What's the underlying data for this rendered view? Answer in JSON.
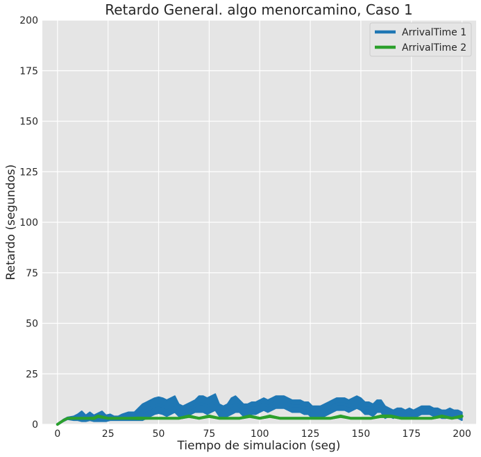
{
  "chart_data": {
    "type": "line",
    "title": "Retardo General. algo menorcamino, Caso 1",
    "xlabel": "Tiempo de simulacion (seg)",
    "ylabel": "Retardo (segundos)",
    "xlim": [
      -7.5,
      207
    ],
    "ylim": [
      0,
      200
    ],
    "xticks": [
      0,
      25,
      50,
      75,
      100,
      125,
      150,
      175,
      200
    ],
    "yticks": [
      0,
      25,
      50,
      75,
      100,
      125,
      150,
      175,
      200
    ],
    "grid": true,
    "legend_position": "top-right",
    "series": [
      {
        "name": "ArrivalTime 1",
        "color": "#1f77b4",
        "x": [
          0,
          3,
          5,
          8,
          10,
          12,
          14,
          16,
          18,
          20,
          22,
          24,
          26,
          28,
          30,
          32,
          35,
          38,
          40,
          42,
          44,
          46,
          48,
          50,
          52,
          54,
          56,
          58,
          60,
          62,
          64,
          66,
          68,
          70,
          72,
          74,
          76,
          78,
          80,
          82,
          84,
          86,
          88,
          90,
          92,
          94,
          96,
          98,
          100,
          102,
          104,
          106,
          108,
          110,
          112,
          114,
          116,
          118,
          120,
          122,
          124,
          126,
          128,
          130,
          132,
          134,
          136,
          138,
          140,
          142,
          144,
          146,
          148,
          150,
          152,
          154,
          156,
          158,
          160,
          162,
          164,
          166,
          168,
          170,
          172,
          174,
          176,
          178,
          180,
          182,
          184,
          186,
          188,
          190,
          192,
          194,
          196,
          198,
          200
        ],
        "y": [
          0,
          2,
          3,
          3,
          3.5,
          4,
          3,
          4,
          3,
          3.5,
          4,
          3,
          3.5,
          3,
          3,
          3.5,
          4,
          4,
          5,
          6,
          7,
          8,
          9,
          9.5,
          9,
          8,
          9,
          10,
          7,
          6,
          7,
          8,
          9,
          10,
          10,
          9,
          10,
          11,
          7,
          6,
          7,
          9,
          10,
          9,
          7,
          7,
          8,
          8,
          9,
          10,
          9,
          10,
          11,
          11,
          11,
          10,
          9,
          9,
          9,
          8,
          8,
          6,
          6,
          6,
          7,
          8,
          9,
          10,
          10,
          10,
          9,
          10,
          11,
          10,
          8,
          8,
          7,
          9,
          9,
          6,
          6,
          5,
          6,
          6,
          5,
          6,
          5,
          6,
          7,
          7,
          7,
          6,
          6,
          5,
          5,
          6,
          5,
          5,
          4
        ],
        "band": [
          0,
          0.5,
          0.5,
          1,
          1.5,
          2.5,
          1.5,
          2,
          1.5,
          2,
          2.5,
          1.5,
          1.5,
          1,
          1,
          1.5,
          2,
          2,
          3,
          4,
          4,
          4,
          4,
          4,
          4,
          4,
          4,
          4,
          3,
          3,
          3,
          3,
          3,
          4,
          4,
          4,
          4,
          4,
          3,
          3,
          3,
          4,
          4,
          3,
          3,
          3,
          3,
          3,
          3,
          3,
          3,
          3,
          3,
          3,
          3,
          3,
          3,
          3,
          3,
          3,
          3,
          3,
          3,
          3,
          3,
          3,
          3,
          3,
          3,
          3,
          3,
          3,
          3,
          3,
          3,
          3,
          3,
          3,
          3,
          3,
          2,
          2,
          2,
          2,
          2,
          2,
          2,
          2,
          2,
          2,
          2,
          2,
          2,
          2,
          2,
          2,
          2,
          2,
          2
        ]
      },
      {
        "name": "ArrivalTime 2",
        "color": "#2ca02c",
        "x": [
          0,
          3,
          5,
          8,
          10,
          12,
          15,
          18,
          20,
          25,
          30,
          35,
          40,
          45,
          50,
          55,
          60,
          65,
          70,
          75,
          80,
          85,
          90,
          95,
          100,
          105,
          110,
          115,
          120,
          125,
          130,
          135,
          140,
          145,
          150,
          155,
          160,
          165,
          170,
          175,
          180,
          185,
          190,
          195,
          200
        ],
        "y": [
          0,
          2,
          3,
          3,
          3,
          3,
          3,
          3,
          4,
          3,
          3,
          3,
          3,
          3,
          3,
          3,
          3,
          4,
          3,
          4,
          3,
          3,
          3,
          4,
          3,
          4,
          3,
          3,
          3,
          3,
          3,
          3,
          4,
          3,
          3,
          3,
          4,
          4,
          3,
          3,
          3,
          3,
          4,
          3,
          4
        ],
        "band": [
          0,
          0,
          0.3,
          0.3,
          0.3,
          0.3,
          0.3,
          0.5,
          0.5,
          0.3,
          0.3,
          0.3,
          0.5,
          0.3,
          0.3,
          0.3,
          0.3,
          0.5,
          0.3,
          0.5,
          0.3,
          0.3,
          0.3,
          0.5,
          0.3,
          0.5,
          0.3,
          0.3,
          0.3,
          0.3,
          0.3,
          0.3,
          0.5,
          0.3,
          0.3,
          0.3,
          0.5,
          0.5,
          0.3,
          0.3,
          0.3,
          0.3,
          0.5,
          0.3,
          0.5
        ]
      }
    ]
  }
}
